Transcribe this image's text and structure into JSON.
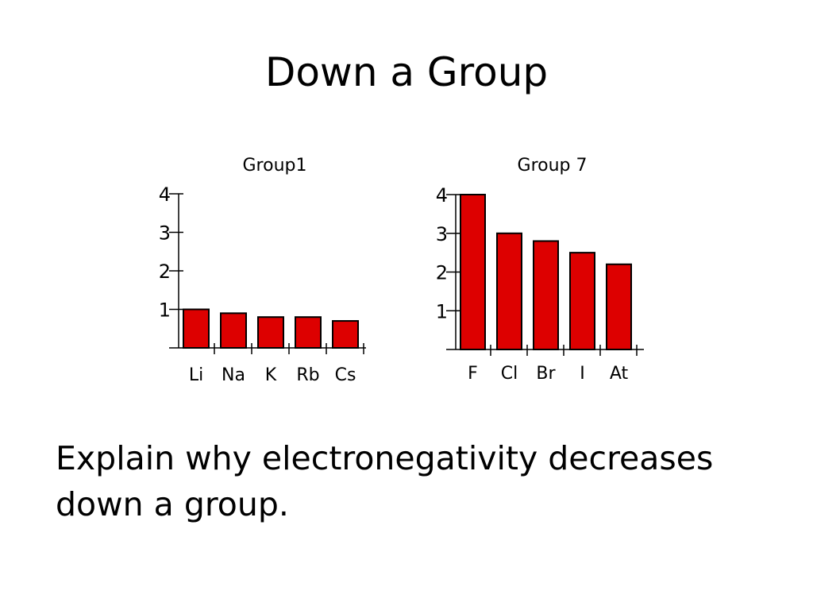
{
  "slide": {
    "title": "Down a Group",
    "body": "Explain why electronegativity decreases down a group."
  },
  "chart_data": [
    {
      "type": "bar",
      "title": "Group1",
      "categories": [
        "Li",
        "Na",
        "K",
        "Rb",
        "Cs"
      ],
      "values": [
        1.0,
        0.9,
        0.8,
        0.8,
        0.7
      ],
      "yticks": [
        1,
        2,
        3,
        4
      ],
      "ylim": [
        0,
        4
      ],
      "xlabel": "",
      "ylabel": "",
      "grid": false,
      "bar_color": "#dd0000"
    },
    {
      "type": "bar",
      "title": "Group 7",
      "categories": [
        "F",
        "Cl",
        "Br",
        "I",
        "At"
      ],
      "values": [
        4.0,
        3.0,
        2.8,
        2.5,
        2.2
      ],
      "yticks": [
        1,
        2,
        3,
        4
      ],
      "ylim": [
        0,
        4
      ],
      "xlabel": "",
      "ylabel": "",
      "grid": false,
      "bar_color": "#dd0000"
    }
  ]
}
